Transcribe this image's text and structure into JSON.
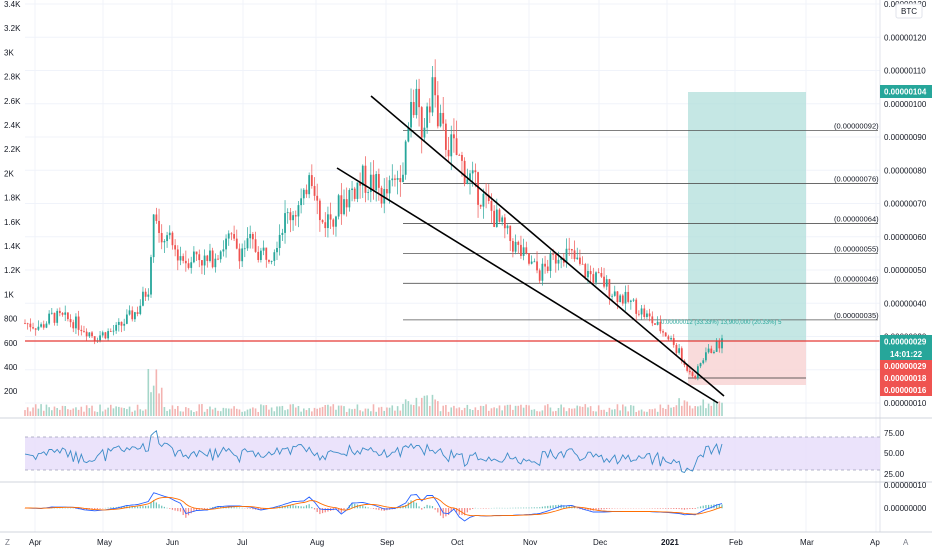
{
  "chart_data": {
    "type": "candlestick",
    "currency_label": "BTC",
    "left_axis_ticks": [
      "3.4K",
      "3.2K",
      "3K",
      "2.8K",
      "2.6K",
      "2.4K",
      "2.2K",
      "2K",
      "1.8K",
      "1.6K",
      "1.4K",
      "1.2K",
      "1K",
      "800",
      "600",
      "400",
      "200"
    ],
    "price_axis_ticks": [
      "0.00000130",
      "0.00000120",
      "0.00000110",
      "0.00000100",
      "0.00000090",
      "0.00000080",
      "0.00000070",
      "0.00000060",
      "0.00000050",
      "0.00000040",
      "0.00000030",
      "0.00000020",
      "0.00000010"
    ],
    "price_range": [
      1e-07,
      1.3e-06
    ],
    "x_ticks": [
      "Apr",
      "May",
      "Jun",
      "Jul",
      "Aug",
      "Sep",
      "Oct",
      "Nov",
      "Dec",
      "2021",
      "Feb",
      "Mar",
      "Ap"
    ],
    "price_tags": {
      "target": "0.00000104",
      "current": "0.00000029",
      "countdown": "14:01:22",
      "entry": "0.00000029",
      "stop_low": "0.00000018",
      "stop_bottom": "0.00000016"
    },
    "fib_levels": [
      {
        "label": "(0.00000092)",
        "value": 9.2e-07
      },
      {
        "label": "(0.00000076)",
        "value": 7.6e-07
      },
      {
        "label": "(0.00000064)",
        "value": 6.4e-07
      },
      {
        "label": "(0.00000055)",
        "value": 5.5e-07
      },
      {
        "label": "(0.00000046)",
        "value": 4.6e-07
      },
      {
        "label": "(0.00000035)",
        "value": 3.5e-07
      }
    ],
    "horizontal_line": 2.9e-07,
    "long_position_label": "0.00000012 (33.33%) 13,900,000 (20.33%) 5",
    "rsi": {
      "ticks": [
        "75.00",
        "50.00",
        "25.00"
      ],
      "band": [
        30,
        70
      ],
      "last": 64
    },
    "macd": {
      "ticks": [
        "0.00000010",
        "0.00000000"
      ]
    },
    "price_series": [
      [
        0,
        3.4e-07
      ],
      [
        6,
        3.3e-07
      ],
      [
        10,
        3.6e-07
      ],
      [
        14,
        3.55e-07
      ],
      [
        18,
        3.45e-07
      ],
      [
        22,
        3.25e-07
      ],
      [
        26,
        3e-07
      ],
      [
        30,
        3.1e-07
      ],
      [
        34,
        3.2e-07
      ],
      [
        38,
        3.5e-07
      ],
      [
        42,
        3.8e-07
      ],
      [
        46,
        4.5e-07
      ],
      [
        48,
        6.4e-07
      ],
      [
        52,
        6e-07
      ],
      [
        56,
        5.6e-07
      ],
      [
        60,
        5.3e-07
      ],
      [
        64,
        5.5e-07
      ],
      [
        68,
        5.2e-07
      ],
      [
        72,
        5.6e-07
      ],
      [
        76,
        5.9e-07
      ],
      [
        80,
        5.6e-07
      ],
      [
        84,
        5.8e-07
      ],
      [
        88,
        5.5e-07
      ],
      [
        92,
        5.6e-07
      ],
      [
        96,
        6.4e-07
      ],
      [
        100,
        6.8e-07
      ],
      [
        104,
        7e-07
      ],
      [
        106,
        8.2e-07
      ],
      [
        108,
        7.6e-07
      ],
      [
        110,
        6.4e-07
      ],
      [
        114,
        6.6e-07
      ],
      [
        118,
        7e-07
      ],
      [
        122,
        7.4e-07
      ],
      [
        126,
        7.7e-07
      ],
      [
        130,
        7.6e-07
      ],
      [
        134,
        7.2e-07
      ],
      [
        138,
        7.6e-07
      ],
      [
        142,
        8.6e-07
      ],
      [
        144,
        1e-06
      ],
      [
        146,
        9.9e-07
      ],
      [
        148,
        8.8e-07
      ],
      [
        150,
        1.01e-06
      ],
      [
        152,
        1.06e-06
      ],
      [
        154,
        9.6e-07
      ],
      [
        156,
        9e-07
      ],
      [
        160,
        8.6e-07
      ],
      [
        164,
        8e-07
      ],
      [
        168,
        7.5e-07
      ],
      [
        172,
        7e-07
      ],
      [
        176,
        6.5e-07
      ],
      [
        180,
        6e-07
      ],
      [
        184,
        5.6e-07
      ],
      [
        188,
        5.2e-07
      ],
      [
        192,
        4.9e-07
      ],
      [
        196,
        5.2e-07
      ],
      [
        200,
        5.6e-07
      ],
      [
        204,
        5.4e-07
      ],
      [
        208,
        5e-07
      ],
      [
        212,
        4.8e-07
      ],
      [
        216,
        4.6e-07
      ],
      [
        220,
        4.3e-07
      ],
      [
        224,
        4.1e-07
      ],
      [
        228,
        3.9e-07
      ],
      [
        232,
        3.6e-07
      ],
      [
        236,
        3.3e-07
      ],
      [
        240,
        3e-07
      ],
      [
        244,
        2.5e-07
      ],
      [
        246,
        2.1e-07
      ],
      [
        248,
        2e-07
      ],
      [
        250,
        1.8e-07
      ],
      [
        252,
        2.2e-07
      ],
      [
        254,
        2.5e-07
      ],
      [
        256,
        2.6e-07
      ],
      [
        258,
        2.7e-07
      ],
      [
        260,
        2.9e-07
      ]
    ]
  }
}
